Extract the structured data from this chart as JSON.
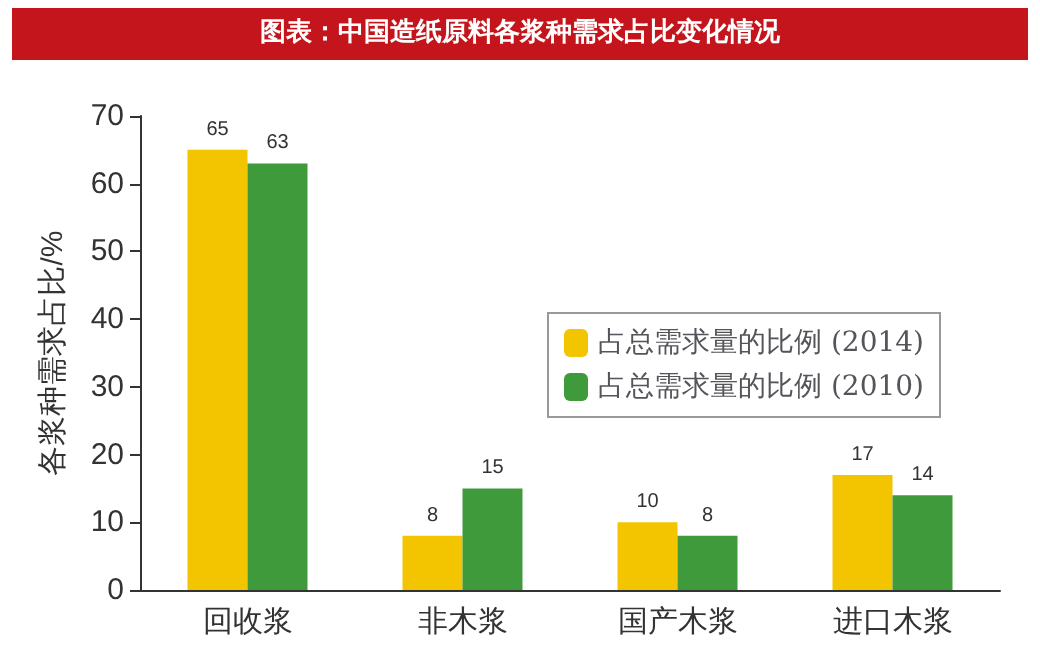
{
  "chart_data": {
    "type": "bar",
    "title": "图表：中国造纸原料各浆种需求占比变化情况",
    "ylabel": "各浆种需求占比/%",
    "categories": [
      "回收浆",
      "非木浆",
      "国产木浆",
      "进口木浆"
    ],
    "series": [
      {
        "name": "占总需求量的比例 (2014)",
        "color": "#f2c500",
        "values": [
          65,
          8,
          10,
          17
        ]
      },
      {
        "name": "占总需求量的比例 (2010)",
        "color": "#3f9a3c",
        "values": [
          63,
          15,
          8,
          14
        ]
      }
    ],
    "ylim": [
      0,
      70
    ],
    "yticks": [
      0,
      10,
      20,
      30,
      40,
      50,
      60,
      70
    ],
    "data_labels": true,
    "legend": "right",
    "grid": false
  }
}
